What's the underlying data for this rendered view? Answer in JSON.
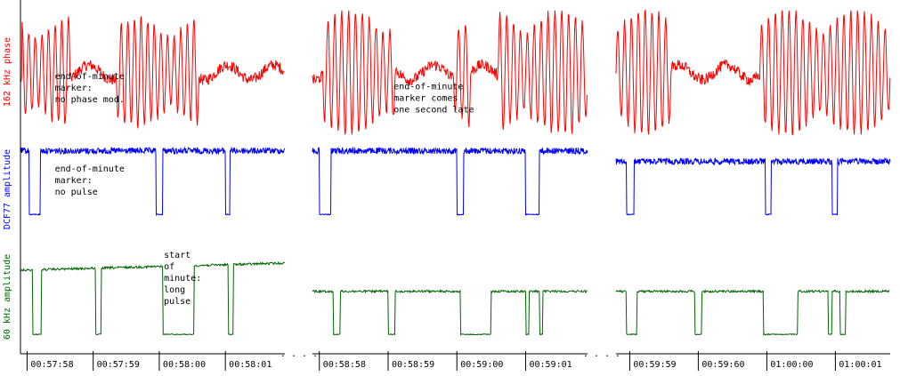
{
  "chart_data": {
    "type": "line",
    "title": "",
    "colors": {
      "phase": "#ff0000",
      "dcf77": "#0000ff",
      "wwvb": "#006400",
      "axis": "#000000"
    },
    "rows": [
      {
        "key": "phase",
        "label": "162 kHz phase"
      },
      {
        "key": "dcf77",
        "label": "DCF77 amplitude"
      },
      {
        "key": "wwvb",
        "label": "60 kHz amplitude"
      }
    ],
    "segments": [
      {
        "ticks": [
          "00:57:58",
          "00:57:59",
          "00:58:00",
          "00:58:01"
        ],
        "tick_seconds": [
          238,
          239,
          240,
          241
        ],
        "x_range": [
          237.9,
          241.9
        ],
        "phase": {
          "osc_windows": [
            [
              237.92,
              238.65
            ],
            [
              239.35,
              240.6
            ]
          ],
          "amplitude": 0.35,
          "frequency_hz": 10
        },
        "dcf77_pulses": [
          [
            238.03,
            238.2
          ],
          [
            239.95,
            240.05
          ],
          [
            241.0,
            241.07
          ]
        ],
        "dcf77_level": [
          0.95,
          0.18
        ],
        "wwvb_lows": [
          [
            238.08,
            238.22
          ],
          [
            239.04,
            239.12
          ],
          [
            240.05,
            240.53
          ],
          [
            241.04,
            241.12
          ]
        ],
        "wwvb_level": [
          0.2,
          0.26,
          0.24,
          0.24
        ],
        "wwvb_low": 0.96
      },
      {
        "ticks": [
          "00:58:58",
          "00:58:59",
          "00:59:00",
          "00:59:01"
        ],
        "tick_seconds": [
          298,
          299,
          300,
          301
        ],
        "x_range": [
          297.9,
          301.9
        ],
        "phase": {
          "osc_windows": [
            [
              298.05,
              299.1
            ],
            [
              299.95,
              300.2
            ],
            [
              300.6,
              301.9
            ]
          ],
          "amplitude": 0.4,
          "frequency_hz": 10
        },
        "dcf77_pulses": [
          [
            298.0,
            298.17
          ],
          [
            300.0,
            300.1
          ],
          [
            301.0,
            301.2
          ]
        ],
        "dcf77_level": [
          0.95,
          0.18
        ],
        "wwvb_lows": [
          [
            298.2,
            298.3
          ],
          [
            299.0,
            299.1
          ],
          [
            300.05,
            300.5
          ],
          [
            301.0,
            301.05
          ],
          [
            301.2,
            301.25
          ]
        ],
        "wwvb_level": [
          0.45,
          0.48,
          0.44,
          0.42
        ],
        "wwvb_low": 0.96
      },
      {
        "ticks": [
          "00:59:59",
          "00:59:60",
          "01:00:00",
          "01:00:01"
        ],
        "tick_seconds": [
          359,
          360,
          361,
          362
        ],
        "x_range": [
          358.8,
          362.8
        ],
        "phase": {
          "osc_windows": [
            [
              358.8,
              359.6
            ],
            [
              360.9,
              362.8
            ]
          ],
          "amplitude": 0.4,
          "frequency_hz": 10
        },
        "dcf77_pulses": [
          [
            358.95,
            359.06
          ],
          [
            360.98,
            361.06
          ],
          [
            361.95,
            362.03
          ]
        ],
        "dcf77_level": [
          0.95,
          0.18
        ],
        "wwvb_lows": [
          [
            358.95,
            359.1
          ],
          [
            359.95,
            360.05
          ],
          [
            360.95,
            361.45
          ],
          [
            361.9,
            361.95
          ],
          [
            362.07,
            362.15
          ]
        ],
        "wwvb_level": [
          0.45,
          0.46,
          0.44,
          0.42
        ],
        "wwvb_low": 0.96
      }
    ],
    "annotations": [
      {
        "segment": 0,
        "row": "phase",
        "t": 238.42,
        "rel_y": 0.55,
        "lines": [
          "end-of-minute",
          "marker:",
          "no phase mod."
        ]
      },
      {
        "segment": 1,
        "row": "phase",
        "t": 299.08,
        "rel_y": 0.63,
        "lines": [
          "end-of-minute",
          "marker comes",
          "one second late"
        ]
      },
      {
        "segment": 0,
        "row": "dcf77",
        "t": 238.42,
        "rel_y": 0.3,
        "lines": [
          "end-of-minute",
          "marker:",
          "no pulse"
        ]
      },
      {
        "segment": 0,
        "row": "wwvb",
        "t": 240.07,
        "rel_y": 0.05,
        "lines": [
          "start",
          "of",
          "minute:",
          "long",
          "pulse"
        ]
      }
    ],
    "gap_marker": ". . . ."
  }
}
